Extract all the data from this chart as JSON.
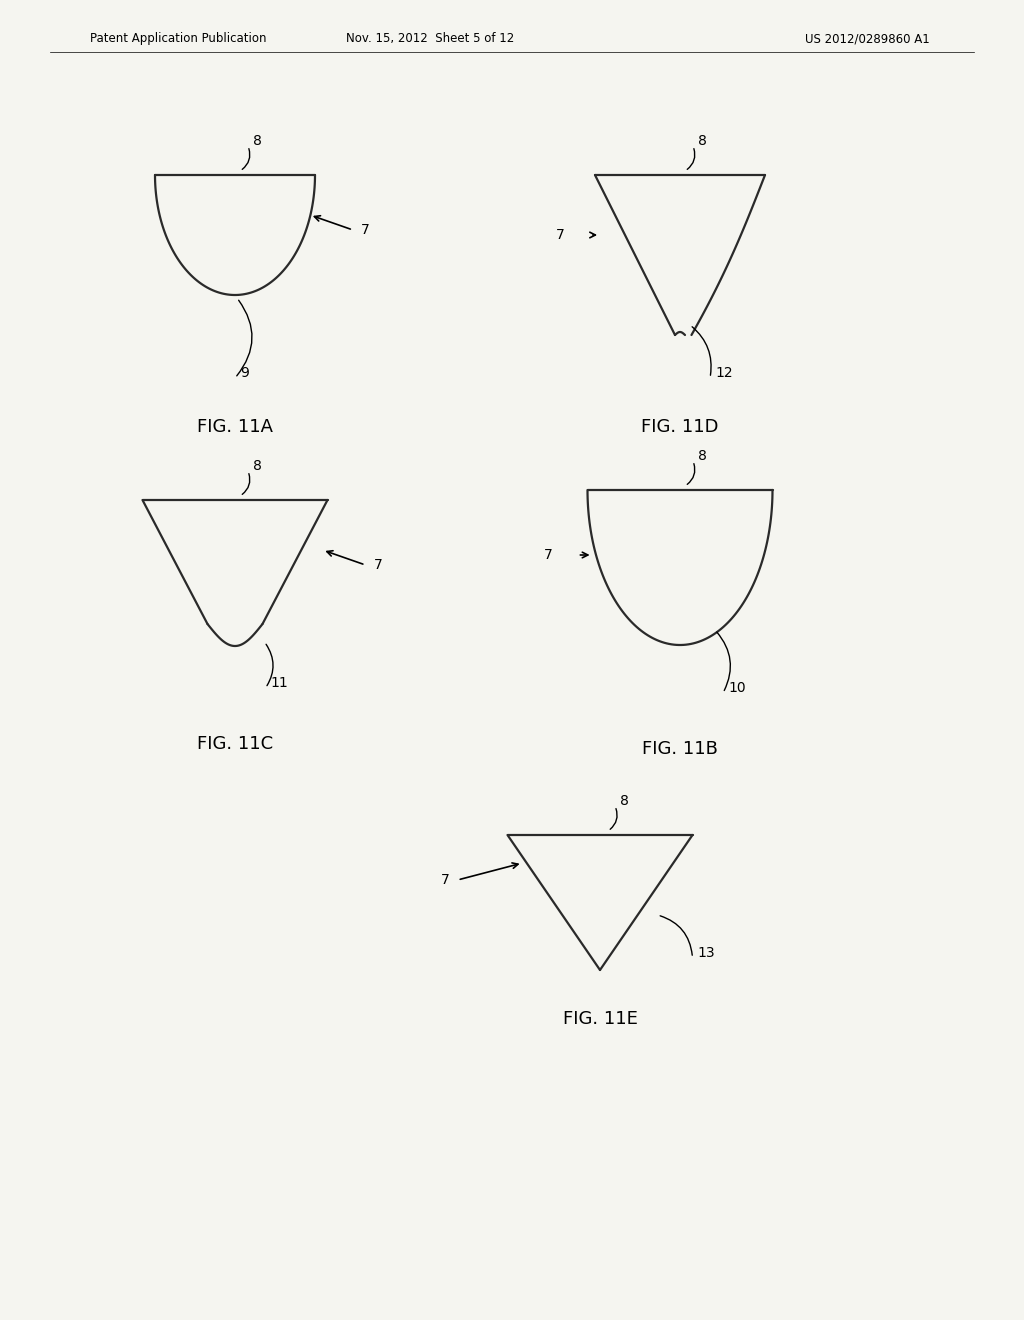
{
  "bg_color": "#f5f5f0",
  "header_text": "Patent Application Publication",
  "header_date": "Nov. 15, 2012  Sheet 5 of 12",
  "header_patent": "US 2012/0289860 A1",
  "line_color": "#2a2a2a",
  "line_width": 1.6,
  "font_size_label": 10,
  "font_size_fig": 13
}
